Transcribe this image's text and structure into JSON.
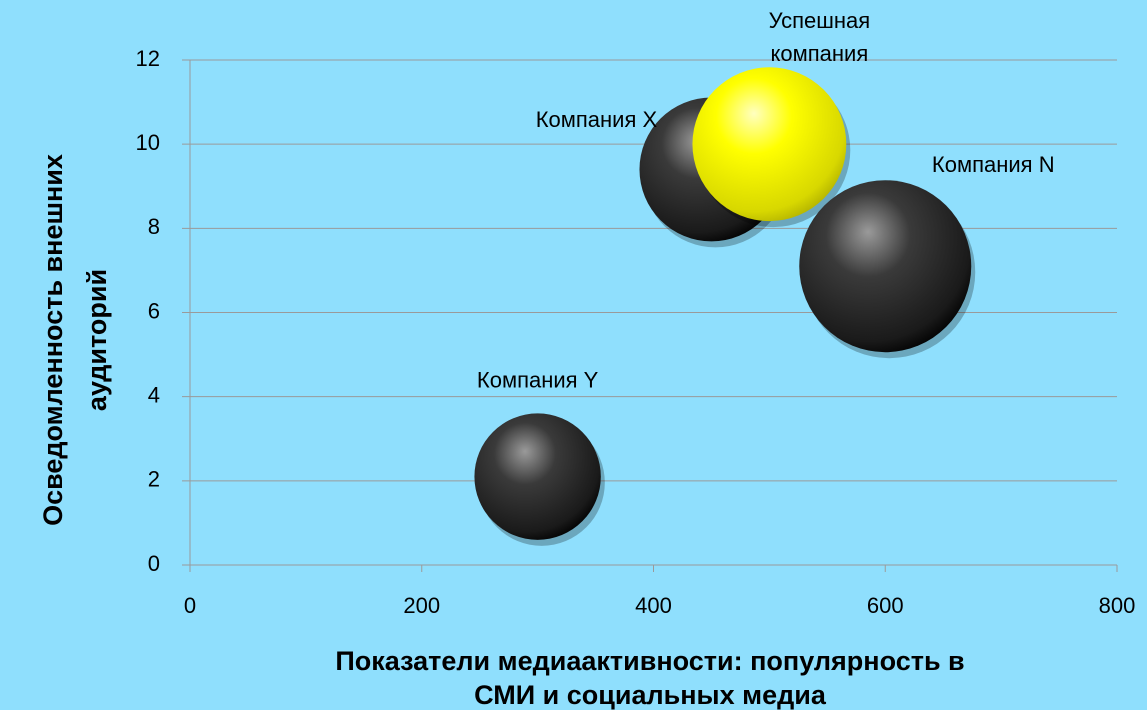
{
  "chart_data": {
    "type": "bubble",
    "x_title": [
      "Показатели медиаактивности: популярность в",
      "СМИ и социальных медиа"
    ],
    "y_title": [
      "Осведомленность внешних",
      "аудиторий"
    ],
    "xlim": [
      0,
      800
    ],
    "xticks": [
      0,
      200,
      400,
      600,
      800
    ],
    "ylim": [
      0,
      12
    ],
    "yticks": [
      0,
      2,
      4,
      6,
      8,
      10,
      12
    ],
    "grid": true,
    "points": [
      {
        "label": [
          "Компания Y"
        ],
        "x": 300,
        "y": 2.1,
        "size": 54,
        "color": "#3a3a3a"
      },
      {
        "label": [
          "Компания X"
        ],
        "x": 450,
        "y": 9.4,
        "size": 70,
        "color": "#3a3a3a"
      },
      {
        "label": [
          "Успешная",
          "компания"
        ],
        "x": 500,
        "y": 10,
        "size": 80,
        "color": "#ffff00"
      },
      {
        "label": [
          "Компания N"
        ],
        "x": 600,
        "y": 7.1,
        "size": 100,
        "color": "#3a3a3a"
      }
    ]
  }
}
